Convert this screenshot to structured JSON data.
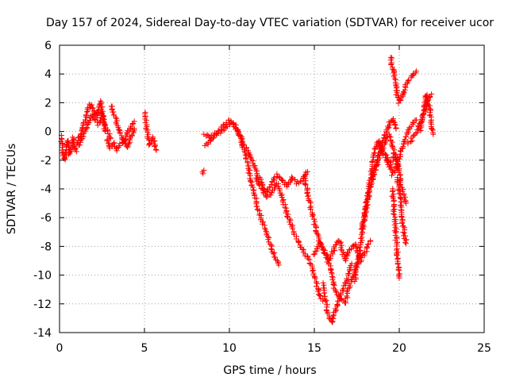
{
  "chart_data": {
    "type": "scatter",
    "title": "Day 157 of 2024, Sidereal Day-to-day VTEC variation (SDTVAR) for receiver ucor",
    "xlabel": "GPS time / hours",
    "ylabel": "SDTVAR / TECUs",
    "xlim": [
      0,
      25
    ],
    "ylim": [
      -14,
      6
    ],
    "xticks": [
      0,
      5,
      10,
      15,
      20,
      25
    ],
    "yticks": [
      -14,
      -12,
      -10,
      -8,
      -6,
      -4,
      -2,
      0,
      2,
      4,
      6
    ],
    "grid": true,
    "legend": "none",
    "marker": "plus",
    "color": "#ff0000",
    "series": [
      {
        "x": [
          0.1,
          0.2,
          0.3,
          0.4,
          0.5,
          0.6,
          0.7,
          0.8,
          0.9,
          1.0
        ],
        "y": [
          -0.3,
          -1.5,
          -2.0,
          -1.0,
          -0.6,
          -1.6,
          -1.2,
          -0.4,
          -1.0,
          -1.4
        ]
      },
      {
        "x": [
          1.0,
          1.2,
          1.4,
          1.6,
          1.8,
          2.0,
          2.2,
          2.4,
          2.6,
          2.8,
          3.0
        ],
        "y": [
          -0.8,
          -0.3,
          0.4,
          1.2,
          1.9,
          1.6,
          1.0,
          2.1,
          0.6,
          0.2,
          -0.5
        ]
      },
      {
        "x": [
          1.1,
          1.3,
          1.5,
          1.7,
          1.9,
          2.1,
          2.3,
          2.5,
          2.7
        ],
        "y": [
          -1.0,
          -0.6,
          0.0,
          0.6,
          1.2,
          0.8,
          0.5,
          1.4,
          0.0
        ]
      },
      {
        "x": [
          2.8,
          3.0,
          3.2,
          3.4,
          3.6,
          3.8,
          4.0,
          4.2,
          4.4
        ],
        "y": [
          -0.6,
          -1.2,
          -0.8,
          -1.3,
          -0.9,
          -0.6,
          -1.1,
          -0.4,
          0.2
        ]
      },
      {
        "x": [
          3.0,
          3.2,
          3.4,
          3.6,
          3.8,
          4.0,
          4.2,
          4.4
        ],
        "y": [
          1.8,
          1.3,
          0.4,
          -0.3,
          -0.8,
          -0.1,
          0.3,
          0.7
        ]
      },
      {
        "x": [
          5.0,
          5.1,
          5.2,
          5.3,
          5.5,
          5.7
        ],
        "y": [
          1.3,
          0.5,
          -0.3,
          -1.0,
          -0.4,
          -1.3
        ]
      },
      {
        "x": [
          8.4,
          8.5
        ],
        "y": [
          -2.9,
          -2.7
        ]
      },
      {
        "x": [
          8.5,
          8.8,
          9.1,
          9.4,
          9.7,
          10.0,
          10.3,
          10.6,
          10.9,
          11.2,
          11.5,
          11.8,
          12.1,
          12.4,
          12.7,
          12.9
        ],
        "y": [
          -0.2,
          -0.4,
          -0.2,
          0.1,
          0.5,
          0.8,
          0.5,
          -0.4,
          -1.5,
          -3.0,
          -4.5,
          -5.8,
          -6.8,
          -7.8,
          -8.8,
          -9.3
        ]
      },
      {
        "x": [
          8.6,
          8.9,
          9.2,
          9.5,
          9.8,
          10.1,
          10.4,
          10.7,
          11.0,
          11.3,
          11.6,
          11.9,
          12.2,
          12.5,
          12.8,
          13.1,
          13.4,
          13.7,
          14.0,
          14.3,
          14.6
        ],
        "y": [
          -1.0,
          -0.6,
          -0.3,
          0.0,
          0.3,
          0.6,
          0.3,
          -0.4,
          -1.2,
          -2.0,
          -2.8,
          -3.6,
          -4.2,
          -3.6,
          -3.0,
          -3.4,
          -3.8,
          -3.2,
          -3.6,
          -3.4,
          -2.8
        ]
      },
      {
        "x": [
          11.6,
          11.9,
          12.2,
          12.5,
          12.8,
          13.1,
          13.4,
          13.7,
          14.0,
          14.3,
          14.6,
          14.9,
          15.2,
          15.5
        ],
        "y": [
          -3.2,
          -4.0,
          -4.6,
          -4.2,
          -3.6,
          -4.6,
          -5.8,
          -6.6,
          -7.6,
          -8.2,
          -8.8,
          -9.6,
          -11.0,
          -11.8
        ]
      },
      {
        "x": [
          14.4,
          14.7,
          15.0,
          15.3,
          15.6,
          15.9,
          16.2,
          16.5,
          16.8,
          17.1,
          17.4,
          17.7
        ],
        "y": [
          -3.0,
          -4.8,
          -6.4,
          -7.6,
          -8.4,
          -9.4,
          -11.0,
          -11.6,
          -12.0,
          -10.6,
          -9.6,
          -8.6
        ]
      },
      {
        "x": [
          15.0,
          15.3,
          15.6,
          15.9,
          16.2,
          16.5,
          16.8,
          17.1,
          17.4,
          17.7,
          18.0,
          18.3
        ],
        "y": [
          -8.6,
          -7.8,
          -8.4,
          -9.0,
          -8.0,
          -7.6,
          -9.0,
          -8.2,
          -7.8,
          -9.0,
          -8.4,
          -7.6
        ]
      },
      {
        "x": [
          15.5,
          15.8,
          16.0,
          16.3,
          16.6,
          16.9,
          17.2
        ],
        "y": [
          -10.6,
          -12.6,
          -13.3,
          -12.2,
          -11.2,
          -10.4,
          -9.2
        ]
      },
      {
        "x": [
          17.4,
          17.6,
          17.8,
          18.0,
          18.2,
          18.4,
          18.6,
          18.8,
          19.0,
          19.2,
          19.4,
          19.6,
          19.8
        ],
        "y": [
          -10.4,
          -8.8,
          -7.2,
          -5.6,
          -4.4,
          -3.4,
          -2.4,
          -1.6,
          -0.8,
          -0.2,
          0.5,
          0.9,
          0.2
        ]
      },
      {
        "x": [
          17.8,
          18.0,
          18.2,
          18.4,
          18.6,
          18.8,
          19.0,
          19.2,
          19.4,
          19.6,
          19.8,
          20.0
        ],
        "y": [
          -6.8,
          -5.6,
          -4.0,
          -2.4,
          -1.2,
          -0.6,
          -1.4,
          -1.8,
          -2.4,
          -2.0,
          -1.6,
          -2.6
        ]
      },
      {
        "x": [
          18.4,
          18.6,
          18.8,
          19.0,
          19.2,
          19.4,
          19.6,
          19.8,
          20.0,
          20.2,
          20.4
        ],
        "y": [
          -3.4,
          -2.6,
          -1.8,
          -1.2,
          -0.6,
          -0.2,
          -1.0,
          -2.0,
          -3.0,
          -4.2,
          -5.0
        ]
      },
      {
        "x": [
          19.2,
          19.4,
          19.6,
          19.8,
          20.0,
          20.2,
          20.4,
          20.6,
          20.8,
          21.0
        ],
        "y": [
          -1.6,
          -2.2,
          -3.0,
          -2.6,
          -1.8,
          -1.0,
          -0.4,
          0.2,
          0.6,
          0.8
        ]
      },
      {
        "x": [
          19.5,
          19.6,
          19.7,
          19.8,
          19.9,
          20.0,
          20.1,
          20.2,
          20.4,
          20.6,
          20.8,
          21.0
        ],
        "y": [
          5.2,
          4.4,
          3.8,
          3.0,
          2.4,
          2.0,
          2.2,
          2.6,
          3.2,
          3.6,
          4.0,
          4.2
        ]
      },
      {
        "x": [
          19.6,
          19.7,
          19.8,
          19.9,
          20.0
        ],
        "y": [
          -4.0,
          -5.6,
          -7.2,
          -8.8,
          -10.2
        ]
      },
      {
        "x": [
          19.9,
          20.0,
          20.1,
          20.2,
          20.3,
          20.4
        ],
        "y": [
          -3.2,
          -4.2,
          -5.2,
          -6.2,
          -7.2,
          -7.8
        ]
      },
      {
        "x": [
          20.5,
          20.7,
          20.9,
          21.1,
          21.3,
          21.5,
          21.7,
          21.9
        ],
        "y": [
          -0.8,
          -0.6,
          -0.2,
          0.2,
          0.8,
          1.4,
          2.2,
          2.6
        ]
      },
      {
        "x": [
          21.2,
          21.4,
          21.6,
          21.8,
          22.0
        ],
        "y": [
          0.0,
          1.2,
          2.6,
          1.4,
          -0.2
        ]
      }
    ]
  }
}
